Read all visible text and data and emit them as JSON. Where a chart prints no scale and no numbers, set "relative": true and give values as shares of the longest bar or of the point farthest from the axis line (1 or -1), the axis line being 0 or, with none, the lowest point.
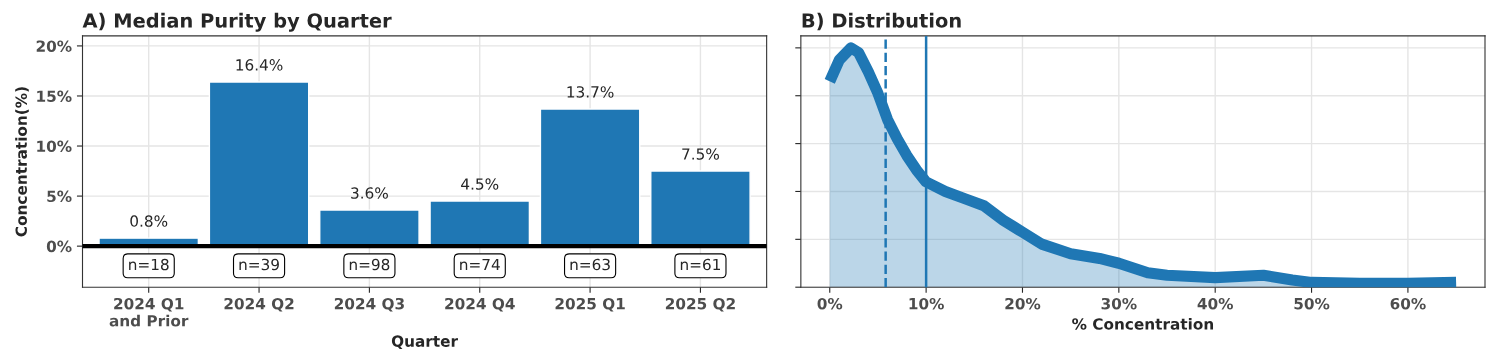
{
  "chart_data": [
    {
      "type": "bar",
      "title": "A) Median Purity by Quarter",
      "xlabel": "Quarter",
      "ylabel": "Concentration(%)",
      "categories": [
        "2024 Q1\nand Prior",
        "2024 Q2",
        "2024 Q3",
        "2024 Q4",
        "2025 Q1",
        "2025 Q2"
      ],
      "values": [
        0.8,
        16.4,
        3.6,
        4.5,
        13.7,
        7.5
      ],
      "color": "#1f77b4",
      "value_labels": [
        "0.8%",
        "16.4%",
        "3.6%",
        "4.5%",
        "13.7%",
        "7.5%"
      ],
      "ylim": [
        -4.1,
        21
      ],
      "yticks": [
        {
          "value": 0,
          "label": "0%"
        },
        {
          "value": 5,
          "label": "5%"
        },
        {
          "value": 10,
          "label": "10%"
        },
        {
          "value": 15,
          "label": "15%"
        },
        {
          "value": 20,
          "label": "20%"
        }
      ],
      "ref_lines": [
        {
          "axis": "y",
          "value": 0,
          "color": "#000000"
        }
      ],
      "annotations": [
        "n=18",
        "n=39",
        "n=98",
        "n=74",
        "n=63",
        "n=61"
      ],
      "grid": true
    },
    {
      "type": "area",
      "title": "B) Distribution",
      "xlabel": "% Concentration",
      "relative": true,
      "tick_labels": "x",
      "x": [
        0,
        1,
        2.2,
        3,
        4,
        5,
        6,
        7,
        8,
        9,
        10,
        12,
        14,
        16,
        18,
        20,
        22,
        25,
        28,
        30,
        33,
        35,
        40,
        45,
        48,
        50,
        55,
        60,
        65
      ],
      "series": [
        {
          "color": "#1f77b4",
          "values": [
            0.86,
            0.95,
            1,
            0.98,
            0.9,
            0.81,
            0.7,
            0.62,
            0.55,
            0.49,
            0.44,
            0.4,
            0.37,
            0.34,
            0.28,
            0.23,
            0.18,
            0.14,
            0.12,
            0.1,
            0.06,
            0.05,
            0.04,
            0.05,
            0.03,
            0.02,
            0.016,
            0.016,
            0.02
          ]
        }
      ],
      "xlim": [
        -3,
        68
      ],
      "xticks": [
        {
          "value": 0,
          "label": "0%"
        },
        {
          "value": 10,
          "label": "10%"
        },
        {
          "value": 20,
          "label": "20%"
        },
        {
          "value": 30,
          "label": "30%"
        },
        {
          "value": 40,
          "label": "40%"
        },
        {
          "value": 50,
          "label": "50%"
        },
        {
          "value": 60,
          "label": "60%"
        }
      ],
      "ref_lines": [
        {
          "axis": "x",
          "value": 5.8,
          "line_style": "dashed",
          "color": "#1f77b4"
        },
        {
          "axis": "x",
          "value": 10,
          "line_style": "solid",
          "color": "#1f77b4"
        }
      ],
      "grid": true
    }
  ]
}
